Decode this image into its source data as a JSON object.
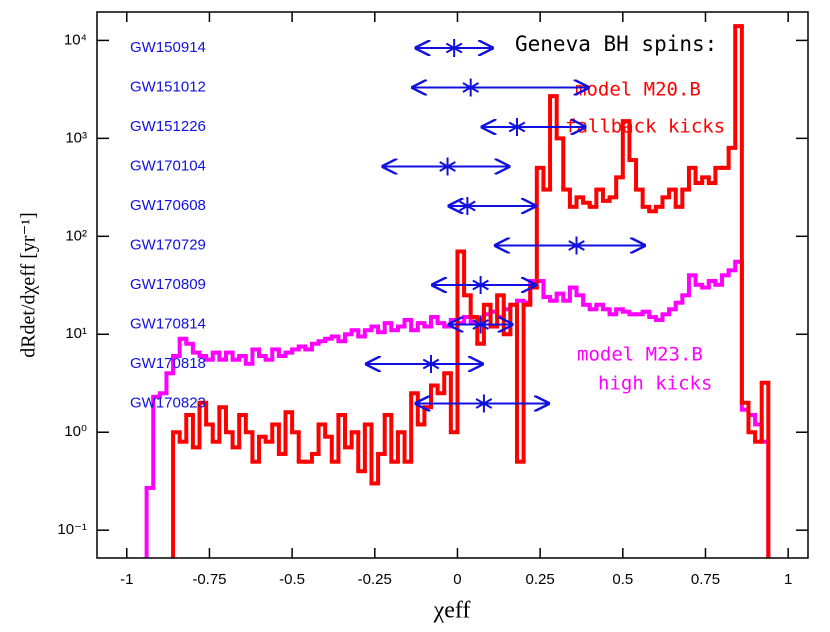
{
  "chart_data": {
    "type": "histogram",
    "xlabel": "χeff",
    "ylabel": "dRdet/dχeff [yr⁻¹]",
    "annotations": [
      "Geneva BH spins:",
      "model M20.B",
      "fallback kicks",
      "model M23.B",
      "high kicks"
    ],
    "xlim": [
      -1.09,
      1.06
    ],
    "ylim": [
      0.052,
      19500
    ],
    "log_y": true,
    "xticks": [
      -1,
      -0.75,
      -0.5,
      -0.25,
      0,
      0.25,
      0.5,
      0.75,
      1
    ],
    "yticks": [
      {
        "value": 0.1,
        "label": "10⁻¹"
      },
      {
        "value": 1,
        "label": "10⁰"
      },
      {
        "value": 10,
        "label": "10¹"
      },
      {
        "value": 100,
        "label": "10²"
      },
      {
        "value": 1000,
        "label": "10³"
      },
      {
        "value": 10000,
        "label": "10⁴"
      }
    ],
    "bins": [
      -0.96,
      -0.94,
      -0.92,
      -0.9,
      -0.88,
      -0.86,
      -0.84,
      -0.82,
      -0.8,
      -0.78,
      -0.76,
      -0.74,
      -0.72,
      -0.7,
      -0.68,
      -0.66,
      -0.64,
      -0.62,
      -0.6,
      -0.58,
      -0.56,
      -0.54,
      -0.52,
      -0.5,
      -0.48,
      -0.46,
      -0.44,
      -0.42,
      -0.4,
      -0.38,
      -0.36,
      -0.34,
      -0.32,
      -0.3,
      -0.28,
      -0.26,
      -0.24,
      -0.22,
      -0.2,
      -0.18,
      -0.16,
      -0.14,
      -0.12,
      -0.1,
      -0.08,
      -0.06,
      -0.04,
      -0.02,
      0,
      0.02,
      0.04,
      0.06,
      0.08,
      0.1,
      0.12,
      0.14,
      0.16,
      0.18,
      0.2,
      0.22,
      0.24,
      0.26,
      0.28,
      0.3,
      0.32,
      0.34,
      0.36,
      0.38,
      0.4,
      0.42,
      0.44,
      0.46,
      0.48,
      0.5,
      0.52,
      0.54,
      0.56,
      0.58,
      0.6,
      0.62,
      0.64,
      0.66,
      0.68,
      0.7,
      0.72,
      0.74,
      0.76,
      0.78,
      0.8,
      0.82,
      0.84,
      0.86,
      0.88,
      0.9,
      0.92,
      0.94,
      0.96,
      0.98
    ],
    "series": [
      {
        "name": "model M23.B",
        "color": "#ff00ff",
        "values": [
          null,
          0.27,
          2.3,
          2.5,
          4,
          6,
          9,
          8,
          6.5,
          6,
          5.5,
          6.5,
          5.5,
          6.5,
          5.5,
          6,
          5,
          7,
          6,
          5.5,
          7,
          6,
          6.5,
          7,
          7.5,
          7,
          8,
          8.5,
          9,
          9.5,
          8.5,
          10,
          11,
          9.5,
          11,
          12,
          10.5,
          13,
          11,
          12,
          14,
          11,
          13,
          12,
          15,
          13,
          12,
          14,
          13,
          15,
          13,
          14,
          16,
          17,
          15,
          18,
          20,
          22,
          21,
          35,
          35,
          24,
          22,
          26,
          22,
          30,
          25,
          20,
          18,
          20,
          18,
          16,
          18,
          17,
          16,
          16,
          17,
          15,
          14,
          16,
          18,
          21,
          25,
          40,
          32,
          30,
          35,
          32,
          40,
          45,
          55,
          1.7,
          1.5,
          1.2,
          0.8,
          null,
          null
        ]
      },
      {
        "name": "model M20.B",
        "color": "#ff0000",
        "values": [
          null,
          null,
          null,
          null,
          null,
          1,
          0.8,
          1.5,
          0.7,
          2,
          1.2,
          0.8,
          1.8,
          1,
          0.7,
          1.5,
          1,
          0.5,
          0.9,
          0.8,
          1.2,
          0.6,
          1.6,
          1,
          0.5,
          0.5,
          0.6,
          1.2,
          0.9,
          0.5,
          1.5,
          0.7,
          1,
          0.4,
          1.2,
          0.3,
          0.6,
          1.5,
          0.5,
          1,
          0.5,
          2.5,
          1.2,
          1.8,
          3,
          2.5,
          4,
          1,
          70,
          25,
          15,
          8,
          20,
          12,
          25,
          10,
          20,
          0.5,
          20,
          30,
          500,
          300,
          2700,
          1000,
          300,
          200,
          250,
          220,
          200,
          300,
          230,
          250,
          400,
          1500,
          600,
          300,
          200,
          180,
          200,
          250,
          300,
          200,
          300,
          500,
          350,
          400,
          350,
          500,
          500,
          800,
          14000,
          2,
          1,
          0.8,
          3.2,
          null,
          null
        ]
      }
    ],
    "events": {
      "color": "#1010e0",
      "names": [
        "GW150914",
        "GW151012",
        "GW151226",
        "GW170104",
        "GW170608",
        "GW170729",
        "GW170809",
        "GW170814",
        "GW170818",
        "GW170823"
      ],
      "values": [
        -0.01,
        0.04,
        0.18,
        -0.03,
        0.03,
        0.36,
        0.07,
        0.07,
        -0.08,
        0.08
      ],
      "lower": [
        -0.13,
        -0.14,
        0.07,
        -0.23,
        -0.03,
        0.11,
        -0.08,
        -0.03,
        -0.28,
        -0.13
      ],
      "upper": [
        0.11,
        0.4,
        0.39,
        0.16,
        0.24,
        0.57,
        0.24,
        0.17,
        0.08,
        0.28
      ]
    }
  }
}
